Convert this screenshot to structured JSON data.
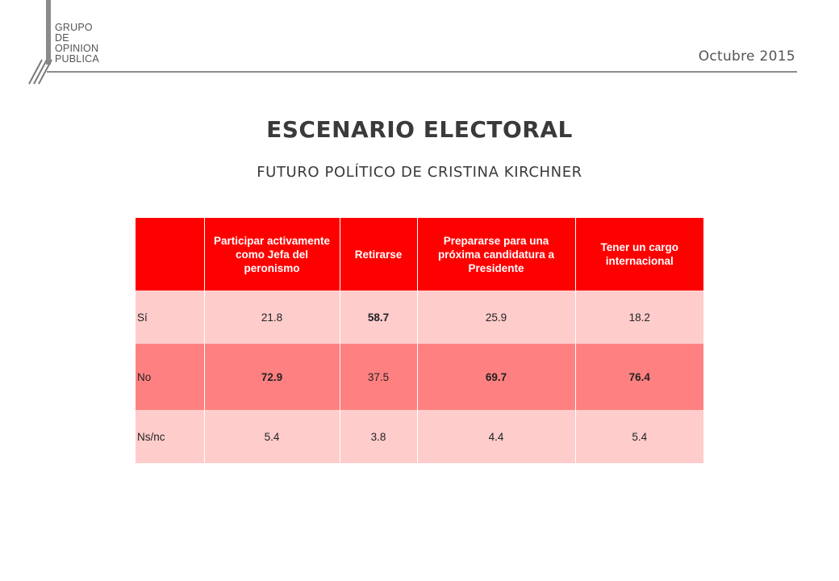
{
  "logo": {
    "text": "GRUPO\nDE\nOPINION\nPUBLICA"
  },
  "header": {
    "date": "Octubre 2015"
  },
  "title": "ESCENARIO ELECTORAL",
  "subtitle": "FUTURO POLÍTICO DE CRISTINA KIRCHNER",
  "table": {
    "columns": [
      "",
      "Participar activamente como Jefa del peronismo",
      "Retirarse",
      "Prepararse para una próxima candidatura a Presidente",
      "Tener un cargo internacional"
    ],
    "rows": [
      {
        "label": "Sí",
        "values": [
          "21.8",
          "58.7",
          "25.9",
          "18.2"
        ]
      },
      {
        "label": "No",
        "values": [
          "72.9",
          "37.5",
          "69.7",
          "76.4"
        ]
      },
      {
        "label": "Ns/nc",
        "values": [
          "5.4",
          "3.8",
          "4.4",
          "5.4"
        ]
      }
    ]
  },
  "colors": {
    "header_red": "#ff0000",
    "row_light": "#ffcccc",
    "row_dark": "#ff8080"
  }
}
